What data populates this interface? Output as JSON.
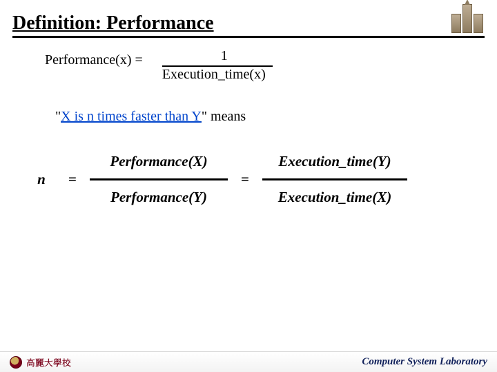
{
  "title": "Definition: Performance",
  "eq1": {
    "lhs": "Performance(x) =",
    "numerator": "1",
    "denominator": "Execution_time(x)"
  },
  "phrase": {
    "pre_quote": "\"",
    "linked": "X is n times faster than Y",
    "post": "\"  means"
  },
  "eq2": {
    "n": "n",
    "eq": "=",
    "perf_x": "Performance(X)",
    "perf_y": "Performance(Y)",
    "exec_y": "Execution_time(Y)",
    "exec_x": "Execution_time(X)"
  },
  "footer": {
    "left": "高麗大學校",
    "right": "Computer System Laboratory"
  },
  "colors": {
    "link": "#0044cc",
    "crimson": "#7a0019",
    "navy": "#10205a"
  }
}
